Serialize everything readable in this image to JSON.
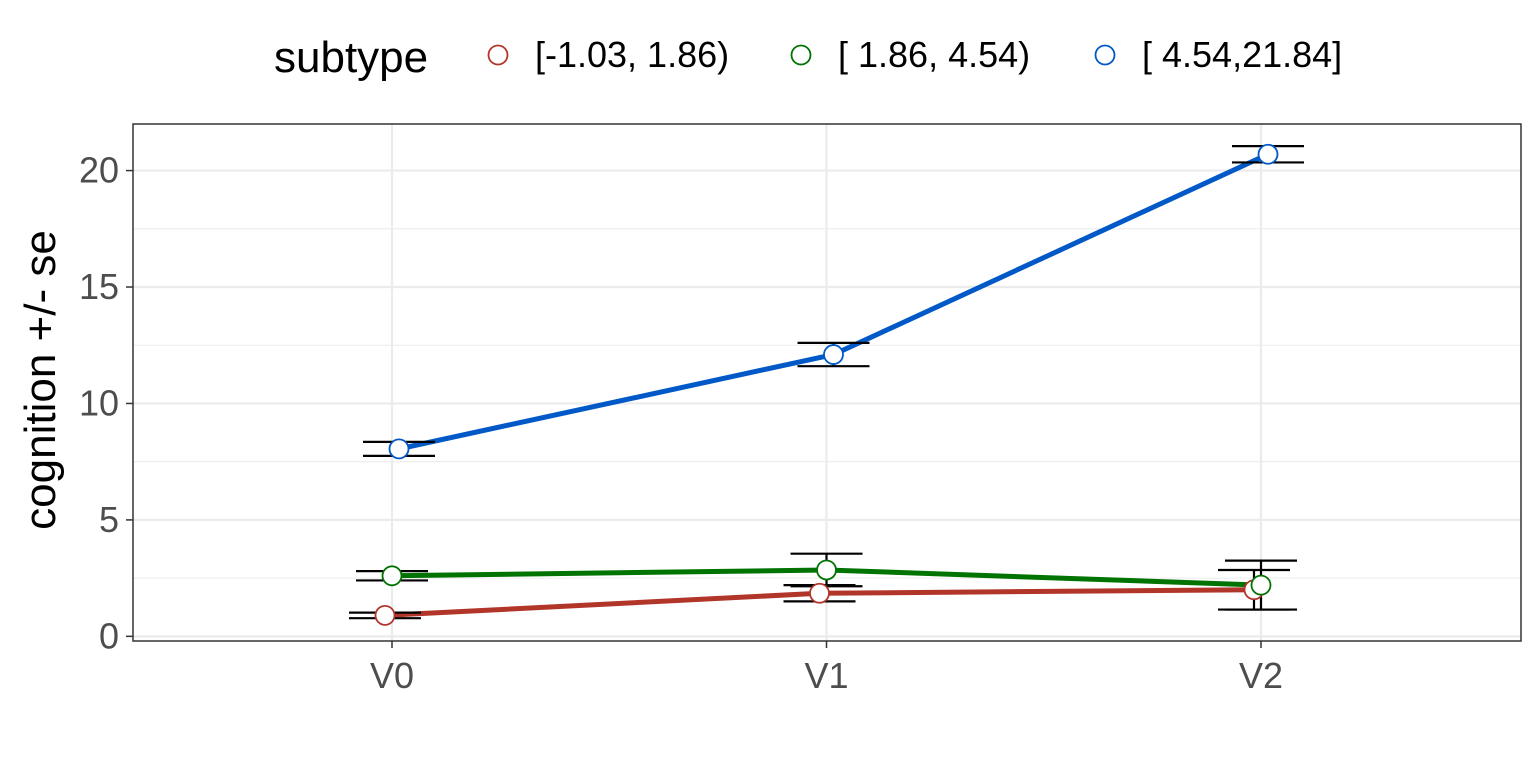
{
  "chart_data": {
    "type": "line",
    "title": "",
    "xlabel": "",
    "ylabel": "cognition  +/- se",
    "categories": [
      "V0",
      "V1",
      "V2"
    ],
    "ylim": [
      -0.2,
      22
    ],
    "yticks": [
      0,
      5,
      10,
      15,
      20
    ],
    "grid": true,
    "legend": {
      "title": "subtype",
      "position": "top"
    },
    "series": [
      {
        "name": "[-1.03, 1.86)",
        "color": "#b2352a",
        "values": [
          0.9,
          1.85,
          2.0
        ],
        "se": [
          0.12,
          0.35,
          0.85
        ]
      },
      {
        "name": "[ 1.86, 4.54)",
        "color": "#007300",
        "values": [
          2.6,
          2.85,
          2.2
        ],
        "se": [
          0.2,
          0.7,
          1.05
        ]
      },
      {
        "name": "[ 4.54,21.84]",
        "color": "#0059c7",
        "values": [
          8.05,
          12.1,
          20.7
        ],
        "se": [
          0.3,
          0.5,
          0.35
        ]
      }
    ]
  }
}
